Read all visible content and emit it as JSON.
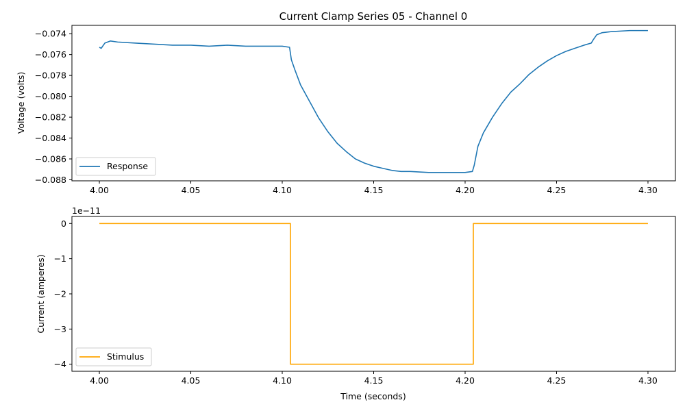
{
  "chart_data": [
    {
      "type": "line",
      "title": "Current Clamp Series 05 - Channel 0",
      "xlabel": "",
      "ylabel": "Voltage (volts)",
      "xlim": [
        3.985,
        4.315
      ],
      "ylim": [
        -0.0881,
        -0.0732
      ],
      "xticks": [
        4.0,
        4.05,
        4.1,
        4.15,
        4.2,
        4.25,
        4.3
      ],
      "xtick_labels": [
        "4.00",
        "4.05",
        "4.10",
        "4.15",
        "4.20",
        "4.25",
        "4.30"
      ],
      "yticks": [
        -0.074,
        -0.076,
        -0.078,
        -0.08,
        -0.082,
        -0.084,
        -0.086,
        -0.088
      ],
      "ytick_labels": [
        "−0.074",
        "−0.076",
        "−0.078",
        "−0.080",
        "−0.082",
        "−0.084",
        "−0.086",
        "−0.088"
      ],
      "legend_position": "lower-left",
      "series": [
        {
          "name": "Response",
          "color": "#1f77b4",
          "x": [
            4.0,
            4.001,
            4.003,
            4.006,
            4.01,
            4.02,
            4.03,
            4.04,
            4.05,
            4.06,
            4.07,
            4.08,
            4.09,
            4.1,
            4.104,
            4.105,
            4.107,
            4.11,
            4.115,
            4.12,
            4.125,
            4.13,
            4.135,
            4.14,
            4.145,
            4.15,
            4.155,
            4.16,
            4.165,
            4.17,
            4.18,
            4.19,
            4.2,
            4.204,
            4.205,
            4.207,
            4.21,
            4.215,
            4.22,
            4.225,
            4.23,
            4.235,
            4.24,
            4.245,
            4.25,
            4.255,
            4.26,
            4.265,
            4.269,
            4.27,
            4.272,
            4.275,
            4.28,
            4.29,
            4.3
          ],
          "y": [
            -0.0753,
            -0.0754,
            -0.0749,
            -0.0747,
            -0.0748,
            -0.0749,
            -0.075,
            -0.0751,
            -0.0751,
            -0.0752,
            -0.0751,
            -0.0752,
            -0.0752,
            -0.0752,
            -0.0753,
            -0.0765,
            -0.0775,
            -0.0789,
            -0.0805,
            -0.0821,
            -0.0834,
            -0.0845,
            -0.0853,
            -0.086,
            -0.0864,
            -0.0867,
            -0.0869,
            -0.0871,
            -0.0872,
            -0.0872,
            -0.0873,
            -0.0873,
            -0.0873,
            -0.0872,
            -0.0866,
            -0.0848,
            -0.0835,
            -0.082,
            -0.0807,
            -0.0796,
            -0.0788,
            -0.0779,
            -0.0772,
            -0.0766,
            -0.0761,
            -0.0757,
            -0.0754,
            -0.0751,
            -0.0749,
            -0.0746,
            -0.0741,
            -0.0739,
            -0.0738,
            -0.0737,
            -0.0737
          ]
        }
      ]
    },
    {
      "type": "line",
      "title": "",
      "xlabel": "Time (seconds)",
      "ylabel": "Current (amperes)",
      "offset_text": "1e−11",
      "xlim": [
        3.985,
        4.315
      ],
      "ylim": [
        -4.2,
        0.2
      ],
      "xticks": [
        4.0,
        4.05,
        4.1,
        4.15,
        4.2,
        4.25,
        4.3
      ],
      "xtick_labels": [
        "4.00",
        "4.05",
        "4.10",
        "4.15",
        "4.20",
        "4.25",
        "4.30"
      ],
      "yticks": [
        0,
        -1,
        -2,
        -3,
        -4
      ],
      "ytick_labels": [
        "0",
        "−1",
        "−2",
        "−3",
        "−4"
      ],
      "legend_position": "lower-left",
      "series": [
        {
          "name": "Stimulus",
          "color": "#ffa500",
          "x": [
            4.0,
            4.1045,
            4.1045,
            4.2045,
            4.2045,
            4.3
          ],
          "y": [
            0,
            0,
            -4,
            -4,
            0,
            0
          ]
        }
      ]
    }
  ]
}
